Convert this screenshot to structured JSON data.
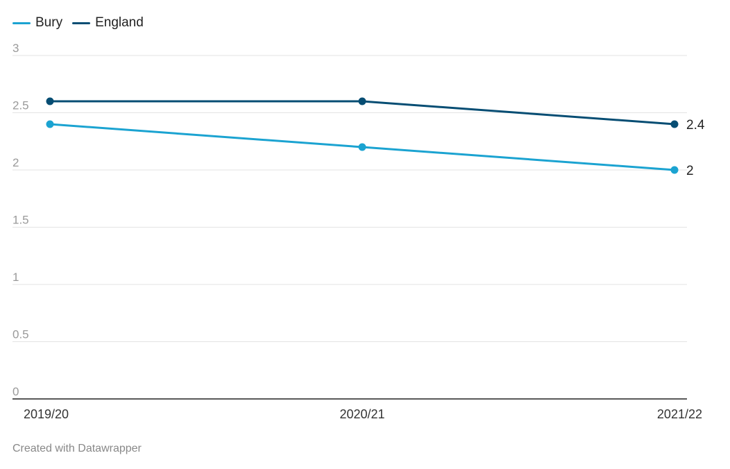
{
  "chart_data": {
    "type": "line",
    "x": [
      "2019/20",
      "2020/21",
      "2021/22"
    ],
    "series": [
      {
        "name": "Bury",
        "values": [
          2.4,
          2.2,
          2.0
        ],
        "color": "#1ba3d1",
        "end_label": "2"
      },
      {
        "name": "England",
        "values": [
          2.6,
          2.6,
          2.4
        ],
        "color": "#064d73",
        "end_label": "2.4"
      }
    ],
    "ylim": [
      0,
      3
    ],
    "yticks": [
      "0",
      "0.5",
      "1",
      "1.5",
      "2",
      "2.5",
      "3"
    ],
    "grid": true,
    "legend": "top-left",
    "title": "",
    "xlabel": "",
    "ylabel": ""
  },
  "legend": {
    "items": [
      {
        "label": "Bury",
        "color": "#1ba3d1"
      },
      {
        "label": "England",
        "color": "#064d73"
      }
    ]
  },
  "footer": {
    "credit": "Created with Datawrapper"
  }
}
